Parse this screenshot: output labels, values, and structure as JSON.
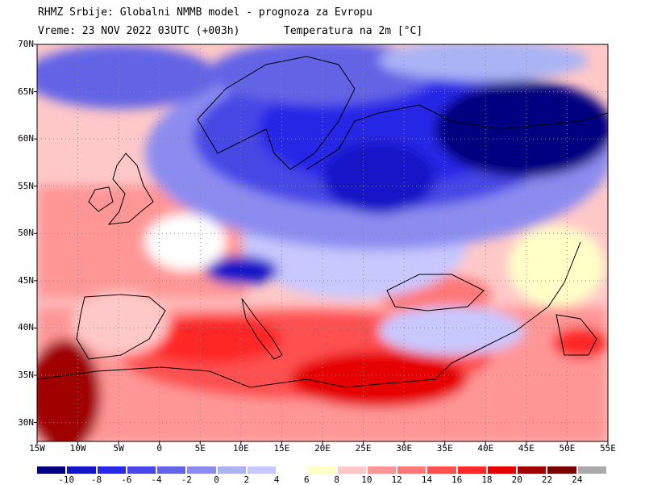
{
  "header": {
    "title": "RHMZ Srbije: Globalni NMMB model - prognoza za Evropu",
    "valid_time": "Vreme: 23 NOV 2022 03UTC (+003h)",
    "variable": "Temperatura na 2m [°C]"
  },
  "map": {
    "lon_range": [
      -15,
      55
    ],
    "lat_range": [
      28,
      70
    ],
    "lat_ticks": [
      {
        "value": 70,
        "label": "70N"
      },
      {
        "value": 65,
        "label": "65N"
      },
      {
        "value": 60,
        "label": "60N"
      },
      {
        "value": 55,
        "label": "55N"
      },
      {
        "value": 50,
        "label": "50N"
      },
      {
        "value": 45,
        "label": "45N"
      },
      {
        "value": 40,
        "label": "40N"
      },
      {
        "value": 35,
        "label": "35N"
      },
      {
        "value": 30,
        "label": "30N"
      }
    ],
    "lon_ticks": [
      {
        "value": -15,
        "label": "15W"
      },
      {
        "value": -10,
        "label": "10W"
      },
      {
        "value": -5,
        "label": "5W"
      },
      {
        "value": 0,
        "label": "0"
      },
      {
        "value": 5,
        "label": "5E"
      },
      {
        "value": 10,
        "label": "10E"
      },
      {
        "value": 15,
        "label": "15E"
      },
      {
        "value": 20,
        "label": "20E"
      },
      {
        "value": 25,
        "label": "25E"
      },
      {
        "value": 30,
        "label": "30E"
      },
      {
        "value": 35,
        "label": "35E"
      },
      {
        "value": 40,
        "label": "40E"
      },
      {
        "value": 45,
        "label": "45E"
      },
      {
        "value": 50,
        "label": "50E"
      },
      {
        "value": 55,
        "label": "55E"
      }
    ]
  },
  "colorbar": {
    "colors": [
      "#000080",
      "#1414c8",
      "#2828e6",
      "#4646e6",
      "#6464e6",
      "#8c8cf0",
      "#aab4f5",
      "#c8c8ff",
      "#ffffff",
      "#ffffc8",
      "#ffc8c8",
      "#ff9696",
      "#ff7878",
      "#ff5050",
      "#ff2828",
      "#e60000",
      "#a00000",
      "#780000",
      "#aaaaaa"
    ],
    "labels": [
      "-10",
      "-8",
      "-6",
      "-4",
      "-2",
      "0",
      "2",
      "4",
      "6",
      "8",
      "10",
      "12",
      "14",
      "16",
      "18",
      "20",
      "22",
      "24"
    ]
  }
}
